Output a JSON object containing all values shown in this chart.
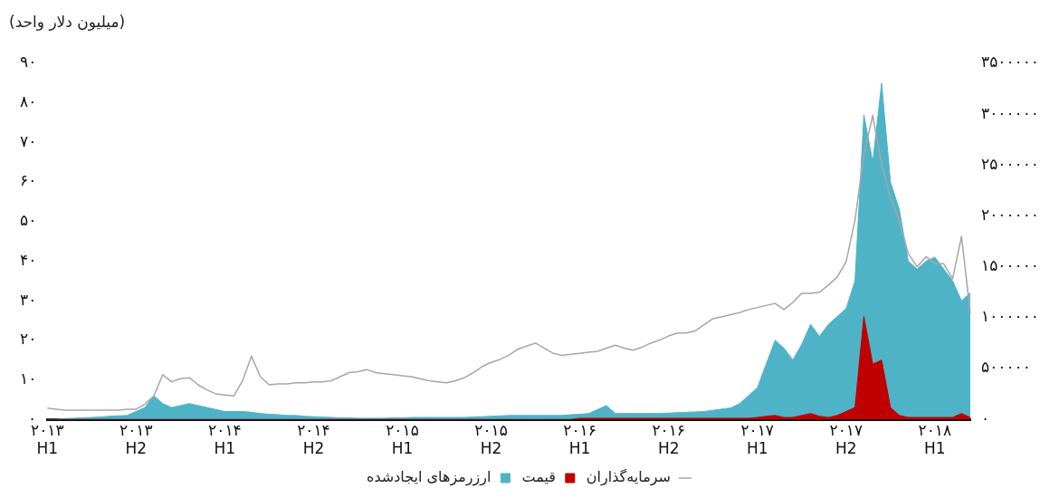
{
  "chart_data": {
    "type": "area",
    "ylabel": "(میلیون دلار واحد)",
    "legend": "bottom",
    "grid": false,
    "categories": [
      "۲۰۱۳\nH1",
      null,
      null,
      null,
      null,
      null,
      null,
      null,
      null,
      null,
      "۲۰۱۳\nH2",
      null,
      null,
      null,
      null,
      null,
      null,
      null,
      null,
      null,
      "۲۰۱۴\nH1",
      null,
      null,
      null,
      null,
      null,
      null,
      null,
      null,
      null,
      "۲۰۱۴\nH2",
      null,
      null,
      null,
      null,
      null,
      null,
      null,
      null,
      null,
      "۲۰۱۵\nH1",
      null,
      null,
      null,
      null,
      null,
      null,
      null,
      null,
      null,
      "۲۰۱۵\nH2",
      null,
      null,
      null,
      null,
      null,
      null,
      null,
      null,
      null,
      "۲۰۱۶\nH1",
      null,
      null,
      null,
      null,
      null,
      null,
      null,
      null,
      null,
      "۲۰۱۶\nH2",
      null,
      null,
      null,
      null,
      null,
      null,
      null,
      null,
      null,
      "۲۰۱۷\nH1",
      null,
      null,
      null,
      null,
      null,
      null,
      null,
      null,
      null,
      "۲۰۱۷\nH2",
      null,
      null,
      null,
      null,
      null,
      null,
      null,
      null,
      null,
      "۲۰۱۸\nH1",
      null,
      null,
      null,
      null
    ],
    "ylim": [
      0,
      90
    ],
    "yticks": [
      {
        "value": 0,
        "label": "۰"
      },
      {
        "value": 10,
        "label": "۱۰"
      },
      {
        "value": 20,
        "label": "۲۰"
      },
      {
        "value": 30,
        "label": "۳۰"
      },
      {
        "value": 40,
        "label": "۴۰"
      },
      {
        "value": 50,
        "label": "۵۰"
      },
      {
        "value": 60,
        "label": "۶۰"
      },
      {
        "value": 70,
        "label": "۷۰"
      },
      {
        "value": 80,
        "label": "۸۰"
      },
      {
        "value": 90,
        "label": "۹۰"
      }
    ],
    "y2lim": [
      0,
      3500000
    ],
    "y2ticks": [
      {
        "value": 0,
        "label": "۰"
      },
      {
        "value": 500000,
        "label": "۵۰۰۰۰۰"
      },
      {
        "value": 1000000,
        "label": "۱۰۰۰۰۰۰"
      },
      {
        "value": 1500000,
        "label": "۱۵۰۰۰۰۰"
      },
      {
        "value": 2000000,
        "label": "۲۰۰۰۰۰۰"
      },
      {
        "value": 2500000,
        "label": "۲۵۰۰۰۰۰"
      },
      {
        "value": 3000000,
        "label": "۳۰۰۰۰۰۰"
      },
      {
        "value": 3500000,
        "label": "۳۵۰۰۰۰۰"
      }
    ],
    "series": [
      {
        "name": "ارزرمزهای ایجادشده",
        "color": "#4fb3c8",
        "values": [
          0,
          0,
          0.2,
          0.3,
          0.4,
          0.5,
          0.6,
          0.8,
          0.9,
          1,
          2,
          3,
          6,
          4,
          3,
          3.5,
          4,
          3.5,
          3,
          2.5,
          2,
          2,
          2,
          1.8,
          1.5,
          1.3,
          1.2,
          1,
          1,
          0.8,
          0.7,
          0.6,
          0.5,
          0.4,
          0.4,
          0.3,
          0.3,
          0.3,
          0.3,
          0.4,
          0.4,
          0.5,
          0.5,
          0.5,
          0.5,
          0.5,
          0.5,
          0.5,
          0.6,
          0.7,
          0.8,
          0.9,
          1,
          1,
          1,
          1,
          1,
          1,
          1,
          1.2,
          1.3,
          1.5,
          2.5,
          3.5,
          1.5,
          1.5,
          1.5,
          1.5,
          1.5,
          1.5,
          1.6,
          1.7,
          1.8,
          1.9,
          2,
          2.3,
          2.6,
          2.9,
          4,
          6,
          8,
          14,
          20,
          18,
          15,
          19,
          24,
          21,
          24,
          26,
          28,
          35,
          77,
          65,
          85,
          60,
          53,
          40,
          38,
          40,
          41,
          38,
          35,
          30,
          32
        ]
      },
      {
        "name": "قیمت",
        "color": "#c00000",
        "values": [
          0,
          0,
          0,
          0,
          0,
          0,
          0,
          0,
          0,
          0,
          0,
          0,
          0,
          0,
          0,
          0,
          0,
          0,
          0,
          0,
          0,
          0,
          0,
          0,
          0,
          0,
          0,
          0,
          0,
          0,
          0,
          0,
          0,
          0,
          0,
          0,
          0,
          0,
          0,
          0,
          0,
          0,
          0,
          0,
          0,
          0,
          0,
          0,
          0,
          0,
          0,
          0,
          0,
          0,
          0,
          0,
          0,
          0,
          0,
          0,
          0.3,
          0.3,
          0.3,
          0.3,
          0.3,
          0.3,
          0.3,
          0.3,
          0.3,
          0.3,
          0.3,
          0.3,
          0.3,
          0.3,
          0.3,
          0.3,
          0.3,
          0.3,
          0.3,
          0.3,
          0.5,
          0.8,
          1,
          0.5,
          0.5,
          1,
          1.5,
          0.8,
          0.5,
          1,
          2,
          3,
          26,
          14,
          15,
          3,
          1,
          0.5,
          0.5,
          0.5,
          0.5,
          0.5,
          0.5,
          1.5,
          0.5
        ]
      },
      {
        "name": "سرمایه‌گذاران",
        "type": "line",
        "axis": "y2",
        "color": "#a6a6a6",
        "values": [
          110000,
          100000,
          90000,
          90000,
          90000,
          90000,
          90000,
          90000,
          90000,
          100000,
          100000,
          150000,
          230000,
          440000,
          370000,
          400000,
          410000,
          340000,
          290000,
          250000,
          240000,
          230000,
          380000,
          620000,
          420000,
          340000,
          350000,
          350000,
          360000,
          360000,
          370000,
          370000,
          380000,
          420000,
          460000,
          470000,
          490000,
          460000,
          450000,
          440000,
          430000,
          420000,
          400000,
          380000,
          370000,
          360000,
          380000,
          410000,
          460000,
          520000,
          560000,
          590000,
          630000,
          690000,
          720000,
          750000,
          700000,
          650000,
          630000,
          640000,
          650000,
          660000,
          670000,
          700000,
          730000,
          700000,
          680000,
          710000,
          750000,
          780000,
          820000,
          850000,
          850000,
          870000,
          930000,
          990000,
          1010000,
          1030000,
          1050000,
          1080000,
          1100000,
          1120000,
          1140000,
          1080000,
          1150000,
          1240000,
          1240000,
          1250000,
          1320000,
          1400000,
          1550000,
          1960000,
          2600000,
          2990000,
          2500000,
          2180000,
          1950000,
          1630000,
          1500000,
          1600000,
          1530000,
          1530000,
          1380000,
          1800000,
          1040000
        ]
      }
    ]
  }
}
